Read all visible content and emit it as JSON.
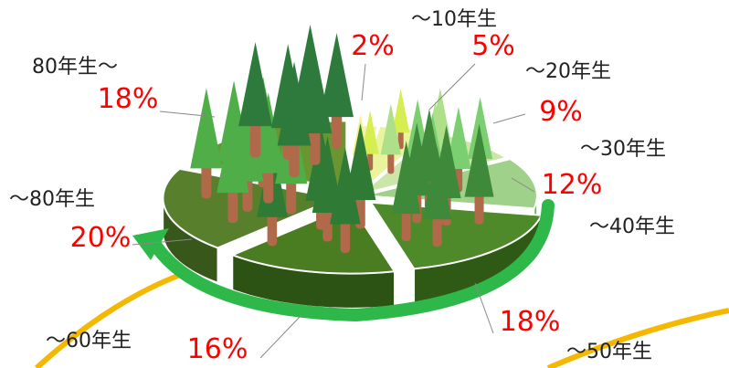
{
  "chart_data": {
    "type": "pie",
    "title": "",
    "unit": "%",
    "slices": [
      {
        "label": "～10年生",
        "value": 2,
        "value_label": "2%"
      },
      {
        "label": "～20年生",
        "value": 5,
        "value_label": "5%"
      },
      {
        "label": "～30年生",
        "value": 9,
        "value_label": "9%"
      },
      {
        "label": "～40年生",
        "value": 12,
        "value_label": "12%"
      },
      {
        "label": "～50年生",
        "value": 18,
        "value_label": "18%"
      },
      {
        "label": "～60年生",
        "value": 16,
        "value_label": "16%"
      },
      {
        "label": "～80年生",
        "value": 20,
        "value_label": "20%"
      },
      {
        "label": "80年生～",
        "value": 18,
        "value_label": "18%"
      }
    ],
    "legend": "none",
    "grid": false
  },
  "colors": {
    "percent_text": "#ff0000",
    "label_text": "#222222",
    "arrow": "#2fb84a",
    "outline_arc": "#f5b800",
    "slices": [
      "#f2f2b8",
      "#e9f49c",
      "#cbe6a8",
      "#9fd18a",
      "#4f8a2a",
      "#4a7c22",
      "#587f2c",
      "#6a9632"
    ],
    "slice_sides": [
      "#d8d8a0",
      "#cfd98a",
      "#aac890",
      "#7fae6a",
      "#2f5a16",
      "#2c5314",
      "#37581a",
      "#3f6418"
    ]
  },
  "decorations": {
    "trees": "tree-icon",
    "arrow": "clockwise-arrow-icon"
  }
}
